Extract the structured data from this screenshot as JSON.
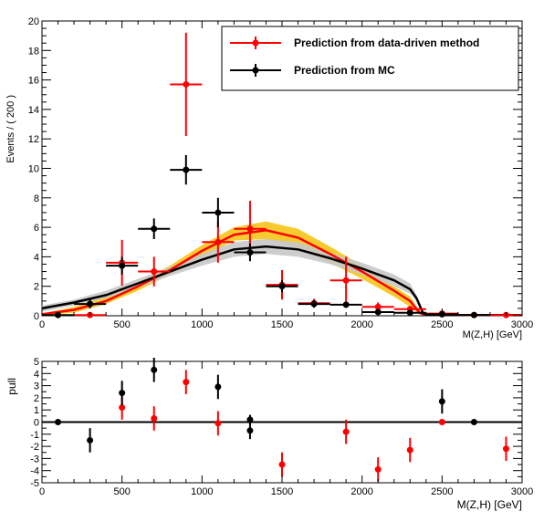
{
  "chart_data": [
    {
      "type": "line",
      "xlabel": "M(Z,H) [GeV]",
      "ylabel": "Events / ( 200 )",
      "xlim": [
        0,
        3000
      ],
      "ylim": [
        0,
        20
      ],
      "x_ticks": [
        "0",
        "500",
        "1000",
        "1500",
        "2000",
        "2500",
        "3000"
      ],
      "y_ticks": [
        "0",
        "2",
        "4",
        "6",
        "8",
        "10",
        "12",
        "14",
        "16",
        "18",
        "20"
      ],
      "legend": {
        "placement": "top-right",
        "entries": [
          {
            "label": "Prediction from data-driven method",
            "color": "#ff0000"
          },
          {
            "label": "Prediction from MC",
            "color": "#000000"
          }
        ]
      },
      "series": [
        {
          "name": "Prediction from data-driven method",
          "color": "#ff0000",
          "kind": "points",
          "points": [
            {
              "x": 300,
              "y": 0.05,
              "xerr": 100,
              "yerr": 0
            },
            {
              "x": 500,
              "y": 3.6,
              "xerr": 100,
              "yerr": 1.55
            },
            {
              "x": 700,
              "y": 3.0,
              "xerr": 100,
              "yerr": 1.0
            },
            {
              "x": 900,
              "y": 15.7,
              "xerr": 100,
              "yerr": 3.5
            },
            {
              "x": 1100,
              "y": 5.0,
              "xerr": 100,
              "yerr": 1.4
            },
            {
              "x": 1300,
              "y": 5.9,
              "xerr": 100,
              "yerr": 1.9
            },
            {
              "x": 1500,
              "y": 2.1,
              "xerr": 100,
              "yerr": 1.0
            },
            {
              "x": 1700,
              "y": 0.85,
              "xerr": 100,
              "yerr": 0.3
            },
            {
              "x": 1900,
              "y": 2.4,
              "xerr": 100,
              "yerr": 1.6
            },
            {
              "x": 2100,
              "y": 0.6,
              "xerr": 100,
              "yerr": 0.3
            },
            {
              "x": 2300,
              "y": 0.45,
              "xerr": 100,
              "yerr": 0.2
            },
            {
              "x": 2500,
              "y": 0.15,
              "xerr": 100,
              "yerr": 0.1
            },
            {
              "x": 2700,
              "y": 0.05,
              "xerr": 100,
              "yerr": 0
            },
            {
              "x": 2900,
              "y": 0.05,
              "xerr": 100,
              "yerr": 0
            }
          ]
        },
        {
          "name": "Prediction from MC",
          "color": "#000000",
          "kind": "points",
          "points": [
            {
              "x": 100,
              "y": 0.05,
              "xerr": 100,
              "yerr": 0
            },
            {
              "x": 300,
              "y": 0.8,
              "xerr": 100,
              "yerr": 0.3
            },
            {
              "x": 500,
              "y": 3.4,
              "xerr": 100,
              "yerr": 0.6
            },
            {
              "x": 700,
              "y": 5.9,
              "xerr": 100,
              "yerr": 0.7
            },
            {
              "x": 900,
              "y": 9.9,
              "xerr": 100,
              "yerr": 1.0
            },
            {
              "x": 1100,
              "y": 7.0,
              "xerr": 100,
              "yerr": 1.0
            },
            {
              "x": 1300,
              "y": 4.3,
              "xerr": 100,
              "yerr": 0.6
            },
            {
              "x": 1500,
              "y": 2.0,
              "xerr": 100,
              "yerr": 0.4
            },
            {
              "x": 1700,
              "y": 0.8,
              "xerr": 100,
              "yerr": 0.25
            },
            {
              "x": 1900,
              "y": 0.75,
              "xerr": 100,
              "yerr": 0.2
            },
            {
              "x": 2100,
              "y": 0.25,
              "xerr": 100,
              "yerr": 0.1
            },
            {
              "x": 2300,
              "y": 0.2,
              "xerr": 100,
              "yerr": 0.1
            },
            {
              "x": 2500,
              "y": 0.1,
              "xerr": 100,
              "yerr": 0.05
            },
            {
              "x": 2700,
              "y": 0.05,
              "xerr": 100,
              "yerr": 0
            }
          ]
        },
        {
          "name": "",
          "color": "#ff0000",
          "kind": "curve",
          "x": [
            0,
            200,
            400,
            600,
            800,
            1000,
            1200,
            1400,
            1600,
            1800,
            2000,
            2200,
            2300,
            2360,
            2400,
            2600,
            2800,
            3000
          ],
          "y": [
            0.1,
            0.4,
            1.0,
            2.0,
            3.1,
            4.4,
            5.5,
            5.8,
            5.3,
            4.2,
            3.0,
            1.7,
            1.0,
            0.2,
            0.05,
            0.05,
            0.05,
            0.05
          ],
          "band_lo": [
            0.05,
            0.2,
            0.8,
            1.7,
            2.8,
            4.0,
            5.1,
            5.2,
            4.6,
            3.6,
            2.5,
            1.3,
            0.6,
            0.1,
            0.0,
            0.0,
            0.0,
            0.0
          ],
          "band_hi": [
            0.15,
            0.6,
            1.3,
            2.3,
            3.4,
            4.8,
            6.0,
            6.4,
            5.9,
            4.7,
            3.4,
            2.0,
            1.3,
            0.3,
            0.1,
            0.1,
            0.1,
            0.1
          ],
          "band_color": "#f5c518"
        },
        {
          "name": "",
          "color": "#000000",
          "kind": "curve",
          "x": [
            0,
            200,
            400,
            600,
            800,
            1000,
            1200,
            1400,
            1600,
            1800,
            2000,
            2200,
            2300,
            2340,
            2380,
            2400,
            2600,
            2800,
            3000
          ],
          "y": [
            0.5,
            0.9,
            1.4,
            2.2,
            3.0,
            3.8,
            4.5,
            4.7,
            4.5,
            3.9,
            3.2,
            2.4,
            1.8,
            1.2,
            0.2,
            0.05,
            0.05,
            0.05,
            0.05
          ],
          "band_lo": [
            0.3,
            0.7,
            1.2,
            1.9,
            2.7,
            3.4,
            4.0,
            4.2,
            4.0,
            3.5,
            2.8,
            2.0,
            1.5,
            1.0,
            0.1,
            0.0,
            0.0,
            0.0,
            0.0
          ],
          "band_hi": [
            0.7,
            1.1,
            1.7,
            2.5,
            3.3,
            4.2,
            5.0,
            5.2,
            5.0,
            4.3,
            3.6,
            2.8,
            2.2,
            1.4,
            0.3,
            0.1,
            0.1,
            0.1,
            0.1
          ],
          "band_color": "#c8c8c8"
        }
      ]
    },
    {
      "type": "scatter",
      "xlabel": "M(Z,H) [GeV]",
      "ylabel": "pull",
      "xlim": [
        0,
        3000
      ],
      "ylim": [
        -5,
        5
      ],
      "x_ticks": [
        "0",
        "500",
        "1000",
        "1500",
        "2000",
        "2500",
        "3000"
      ],
      "y_ticks": [
        "-5",
        "-4",
        "-3",
        "-2",
        "-1",
        "0",
        "1",
        "2",
        "3",
        "4",
        "5"
      ],
      "reference_line": 0,
      "series": [
        {
          "name": "",
          "color": "#ff0000",
          "points": [
            {
              "x": 500,
              "y": 1.2,
              "yerr": 1.0
            },
            {
              "x": 700,
              "y": 0.3,
              "yerr": 1.0
            },
            {
              "x": 900,
              "y": 3.3,
              "yerr": 1.0
            },
            {
              "x": 1100,
              "y": -0.1,
              "yerr": 1.0
            },
            {
              "x": 1500,
              "y": -3.5,
              "yerr": 1.0
            },
            {
              "x": 1900,
              "y": -0.8,
              "yerr": 1.0
            },
            {
              "x": 2100,
              "y": -3.9,
              "yerr": 1.0
            },
            {
              "x": 2300,
              "y": -2.3,
              "yerr": 1.0
            },
            {
              "x": 2500,
              "y": 0.0,
              "yerr": 0
            },
            {
              "x": 2900,
              "y": -2.2,
              "yerr": 1.0
            }
          ]
        },
        {
          "name": "",
          "color": "#000000",
          "points": [
            {
              "x": 100,
              "y": 0.0,
              "yerr": 0
            },
            {
              "x": 300,
              "y": -1.5,
              "yerr": 1.0
            },
            {
              "x": 500,
              "y": 2.4,
              "yerr": 1.0
            },
            {
              "x": 700,
              "y": 4.3,
              "yerr": 1.0
            },
            {
              "x": 1100,
              "y": 2.9,
              "yerr": 1.0
            },
            {
              "x": 1300,
              "y": 0.2,
              "yerr": 0.4
            },
            {
              "x": 1300,
              "y": -0.7,
              "yerr": 0.7
            },
            {
              "x": 2500,
              "y": 1.7,
              "yerr": 1.0
            },
            {
              "x": 2700,
              "y": 0.0,
              "yerr": 0
            }
          ]
        }
      ]
    }
  ]
}
